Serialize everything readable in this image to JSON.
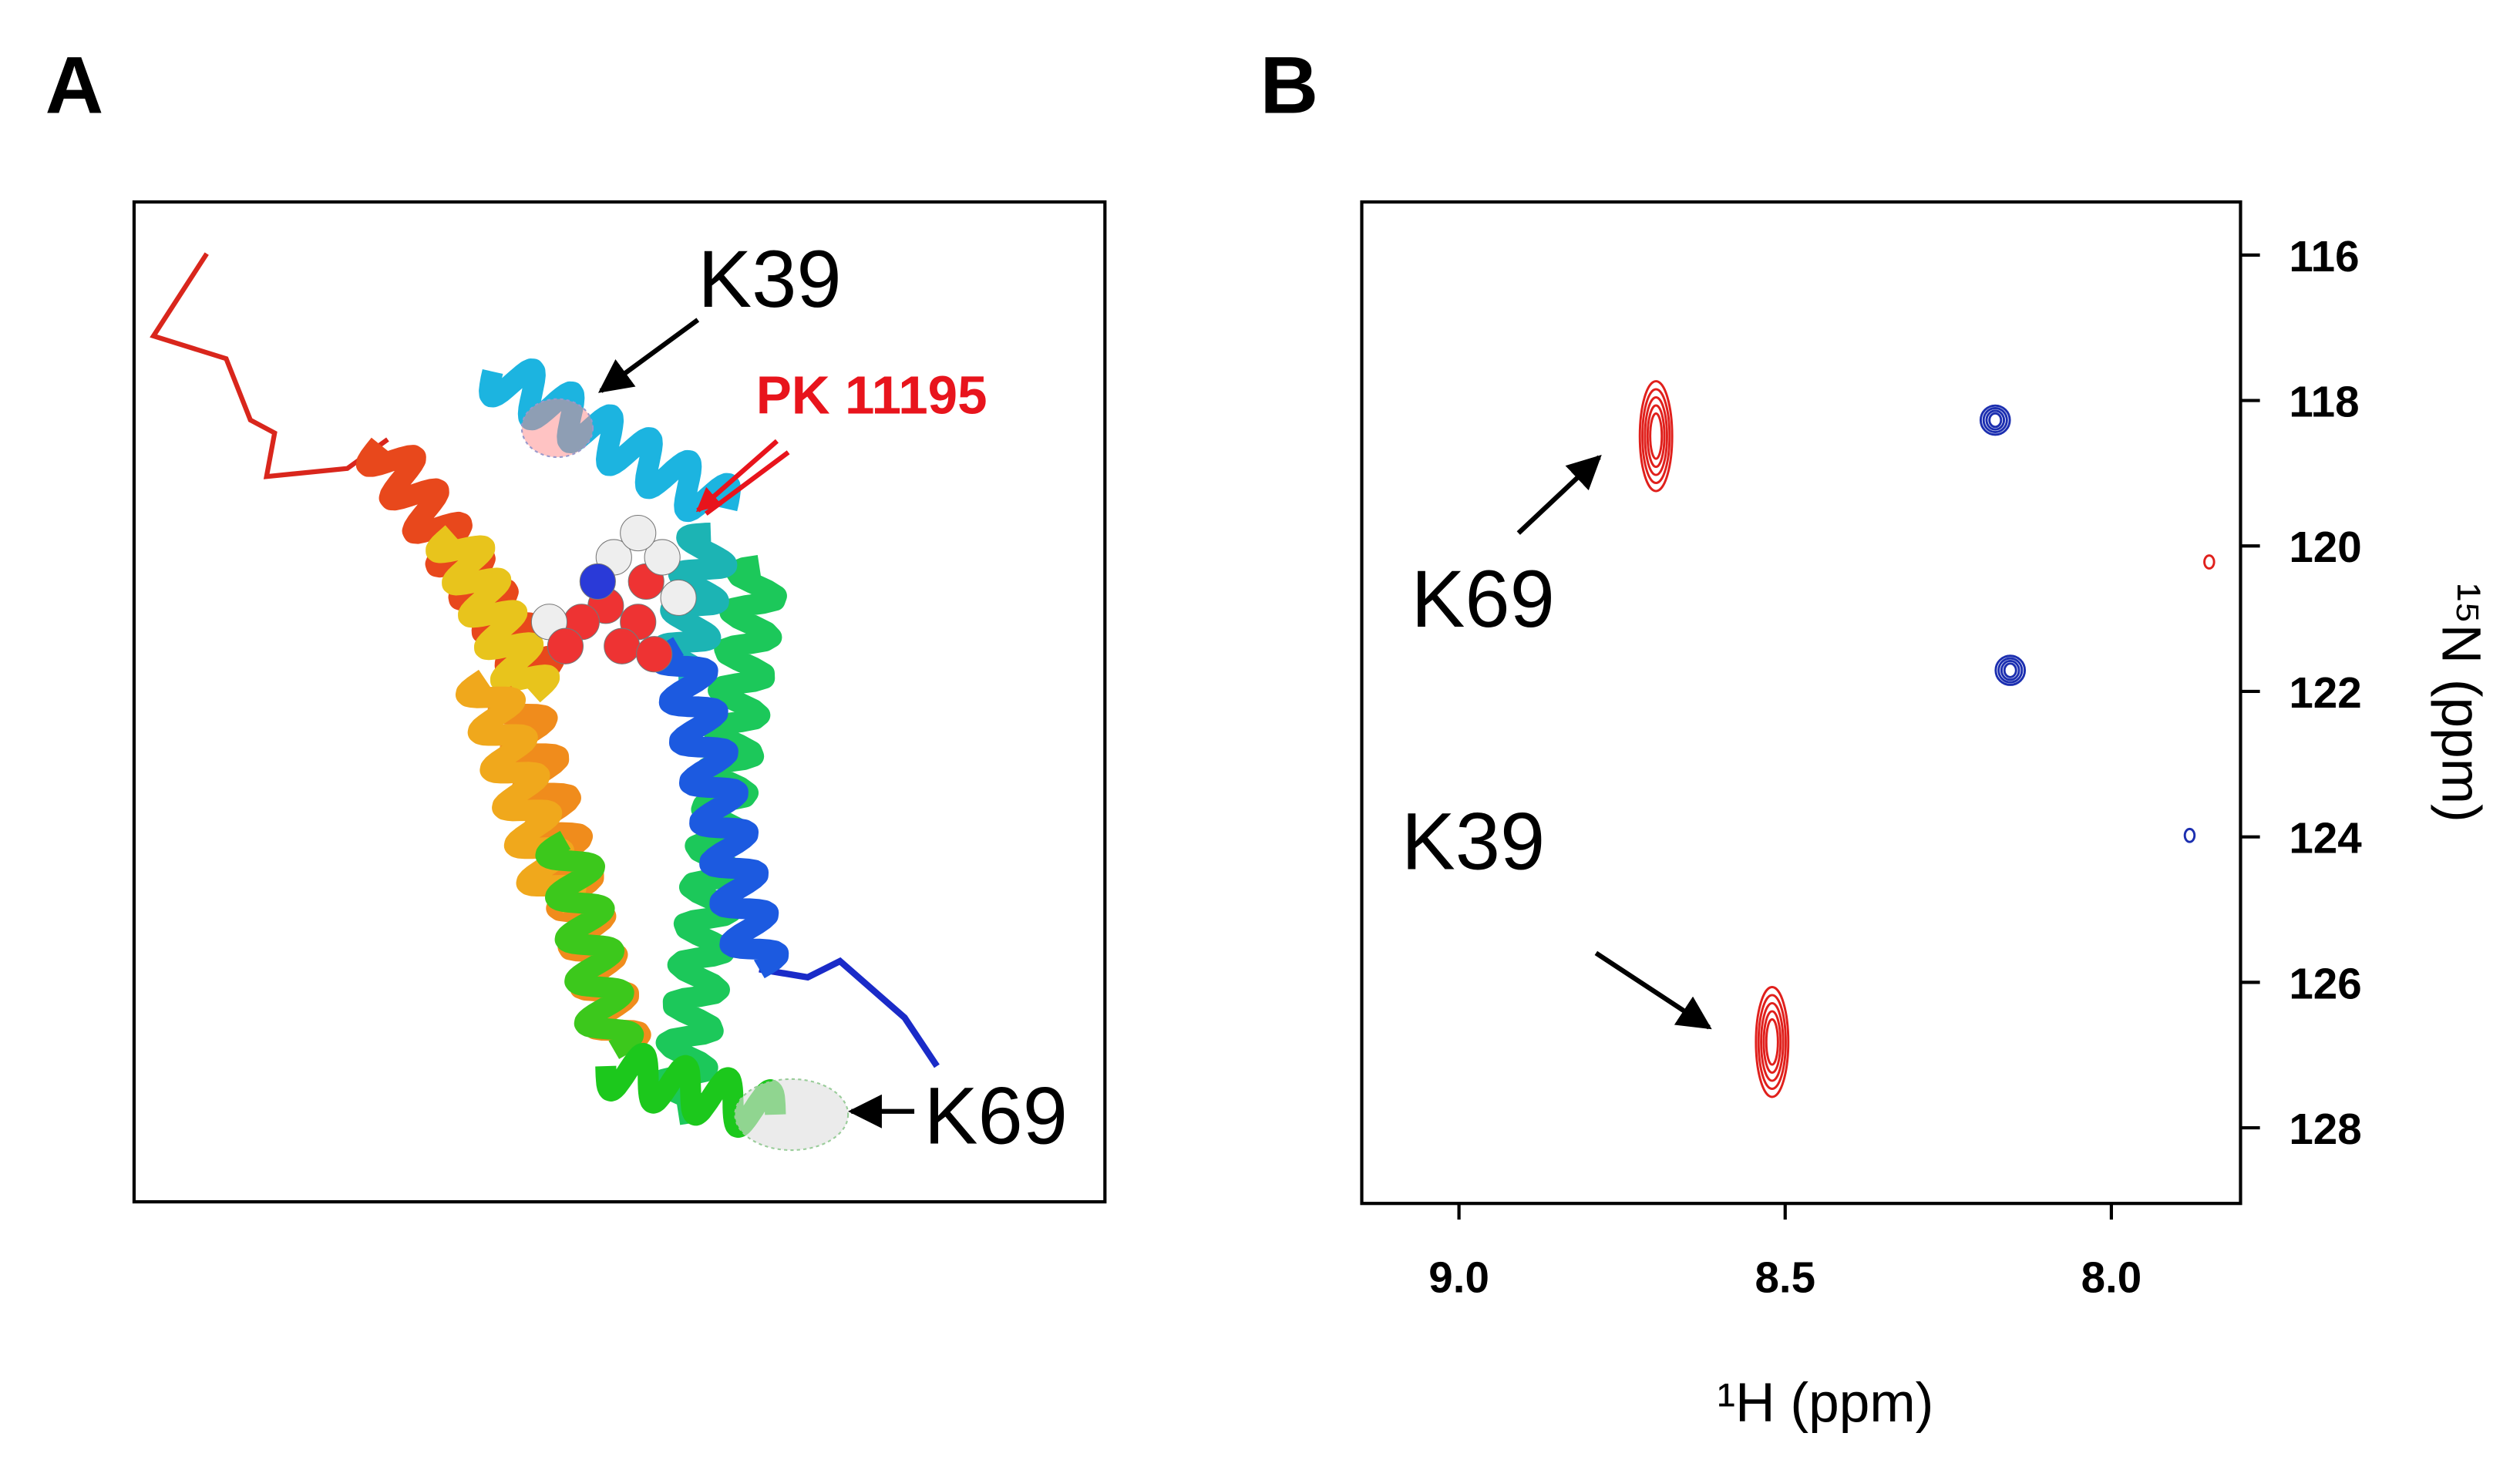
{
  "panels": [
    "A",
    "B"
  ],
  "panel_a": {
    "annotations": [
      "K39",
      "PK 11195",
      "K69"
    ]
  },
  "chart_data": {
    "type": "scatter",
    "xlabel": "¹H (ppm)",
    "ylabel": "¹⁵N (ppm)",
    "xlim": [
      9.149,
      7.802
    ],
    "ylim": [
      129.04,
      115.27
    ],
    "xticks": [
      {
        "value": 9,
        "label": "9.0"
      },
      8.5,
      {
        "value": 8,
        "label": "8.0"
      }
    ],
    "yticks": [
      116,
      118,
      120,
      122,
      124,
      126,
      128
    ],
    "series": [
      {
        "color": "#e0201c",
        "x": [
          8.698,
          8.52,
          7.85
        ],
        "values": [
          118.49,
          126.82,
          120.22
        ]
      },
      {
        "color": "#1c2fb0",
        "x": [
          8.178,
          8.155,
          7.88
        ],
        "values": [
          118.27,
          121.71,
          123.98
        ]
      }
    ],
    "annotations": [
      "K69",
      "K39"
    ]
  }
}
